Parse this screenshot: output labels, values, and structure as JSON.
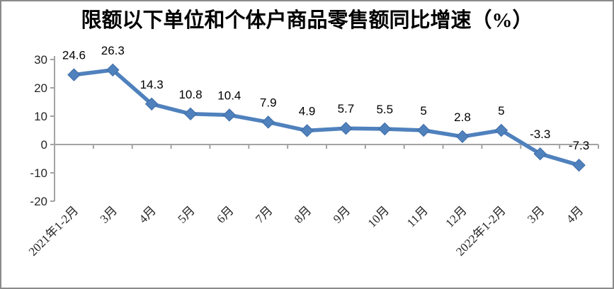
{
  "figure": {
    "background": "#ffffff",
    "border_color": "#8a8a8a"
  },
  "chart_data": {
    "type": "line",
    "title": "限额以下单位和个体户商品零售额同比增速（%）",
    "categories": [
      "2021年1-2月",
      "3月",
      "4月",
      "5月",
      "6月",
      "7月",
      "8月",
      "9月",
      "10月",
      "11月",
      "12月",
      "2022年1-2月",
      "3月",
      "4月"
    ],
    "values": [
      24.6,
      26.3,
      14.3,
      10.8,
      10.4,
      7.9,
      4.9,
      5.7,
      5.5,
      5,
      2.8,
      5,
      -3.3,
      -7.3
    ],
    "data_labels": [
      "24.6",
      "26.3",
      "14.3",
      "10.8",
      "10.4",
      "7.9",
      "4.9",
      "5.7",
      "5.5",
      "5",
      "2.8",
      "5",
      "-3.3",
      "-7.3"
    ],
    "xlabel": "",
    "ylabel": "",
    "ylim": [
      -20,
      30
    ],
    "yticks": [
      30,
      20,
      10,
      0,
      -10,
      -20
    ],
    "grid": false,
    "legend": "none",
    "marker": "diamond",
    "line_color": "#4f81bd",
    "marker_color": "#4f81bd",
    "marker_edge_color": "#3d6ba5",
    "axis_color": "#a3a3a3",
    "tick_label_color": "#262626",
    "data_label_color": "#000000"
  }
}
